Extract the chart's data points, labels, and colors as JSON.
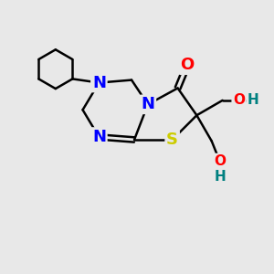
{
  "background_color": "#e8e8e8",
  "atom_colors": {
    "C": "#000000",
    "N": "#0000ff",
    "O": "#ff0000",
    "S": "#cccc00",
    "H": "#008080"
  },
  "bond_color": "#000000",
  "bond_width": 1.8,
  "font_size_atoms": 13,
  "font_size_H": 11
}
